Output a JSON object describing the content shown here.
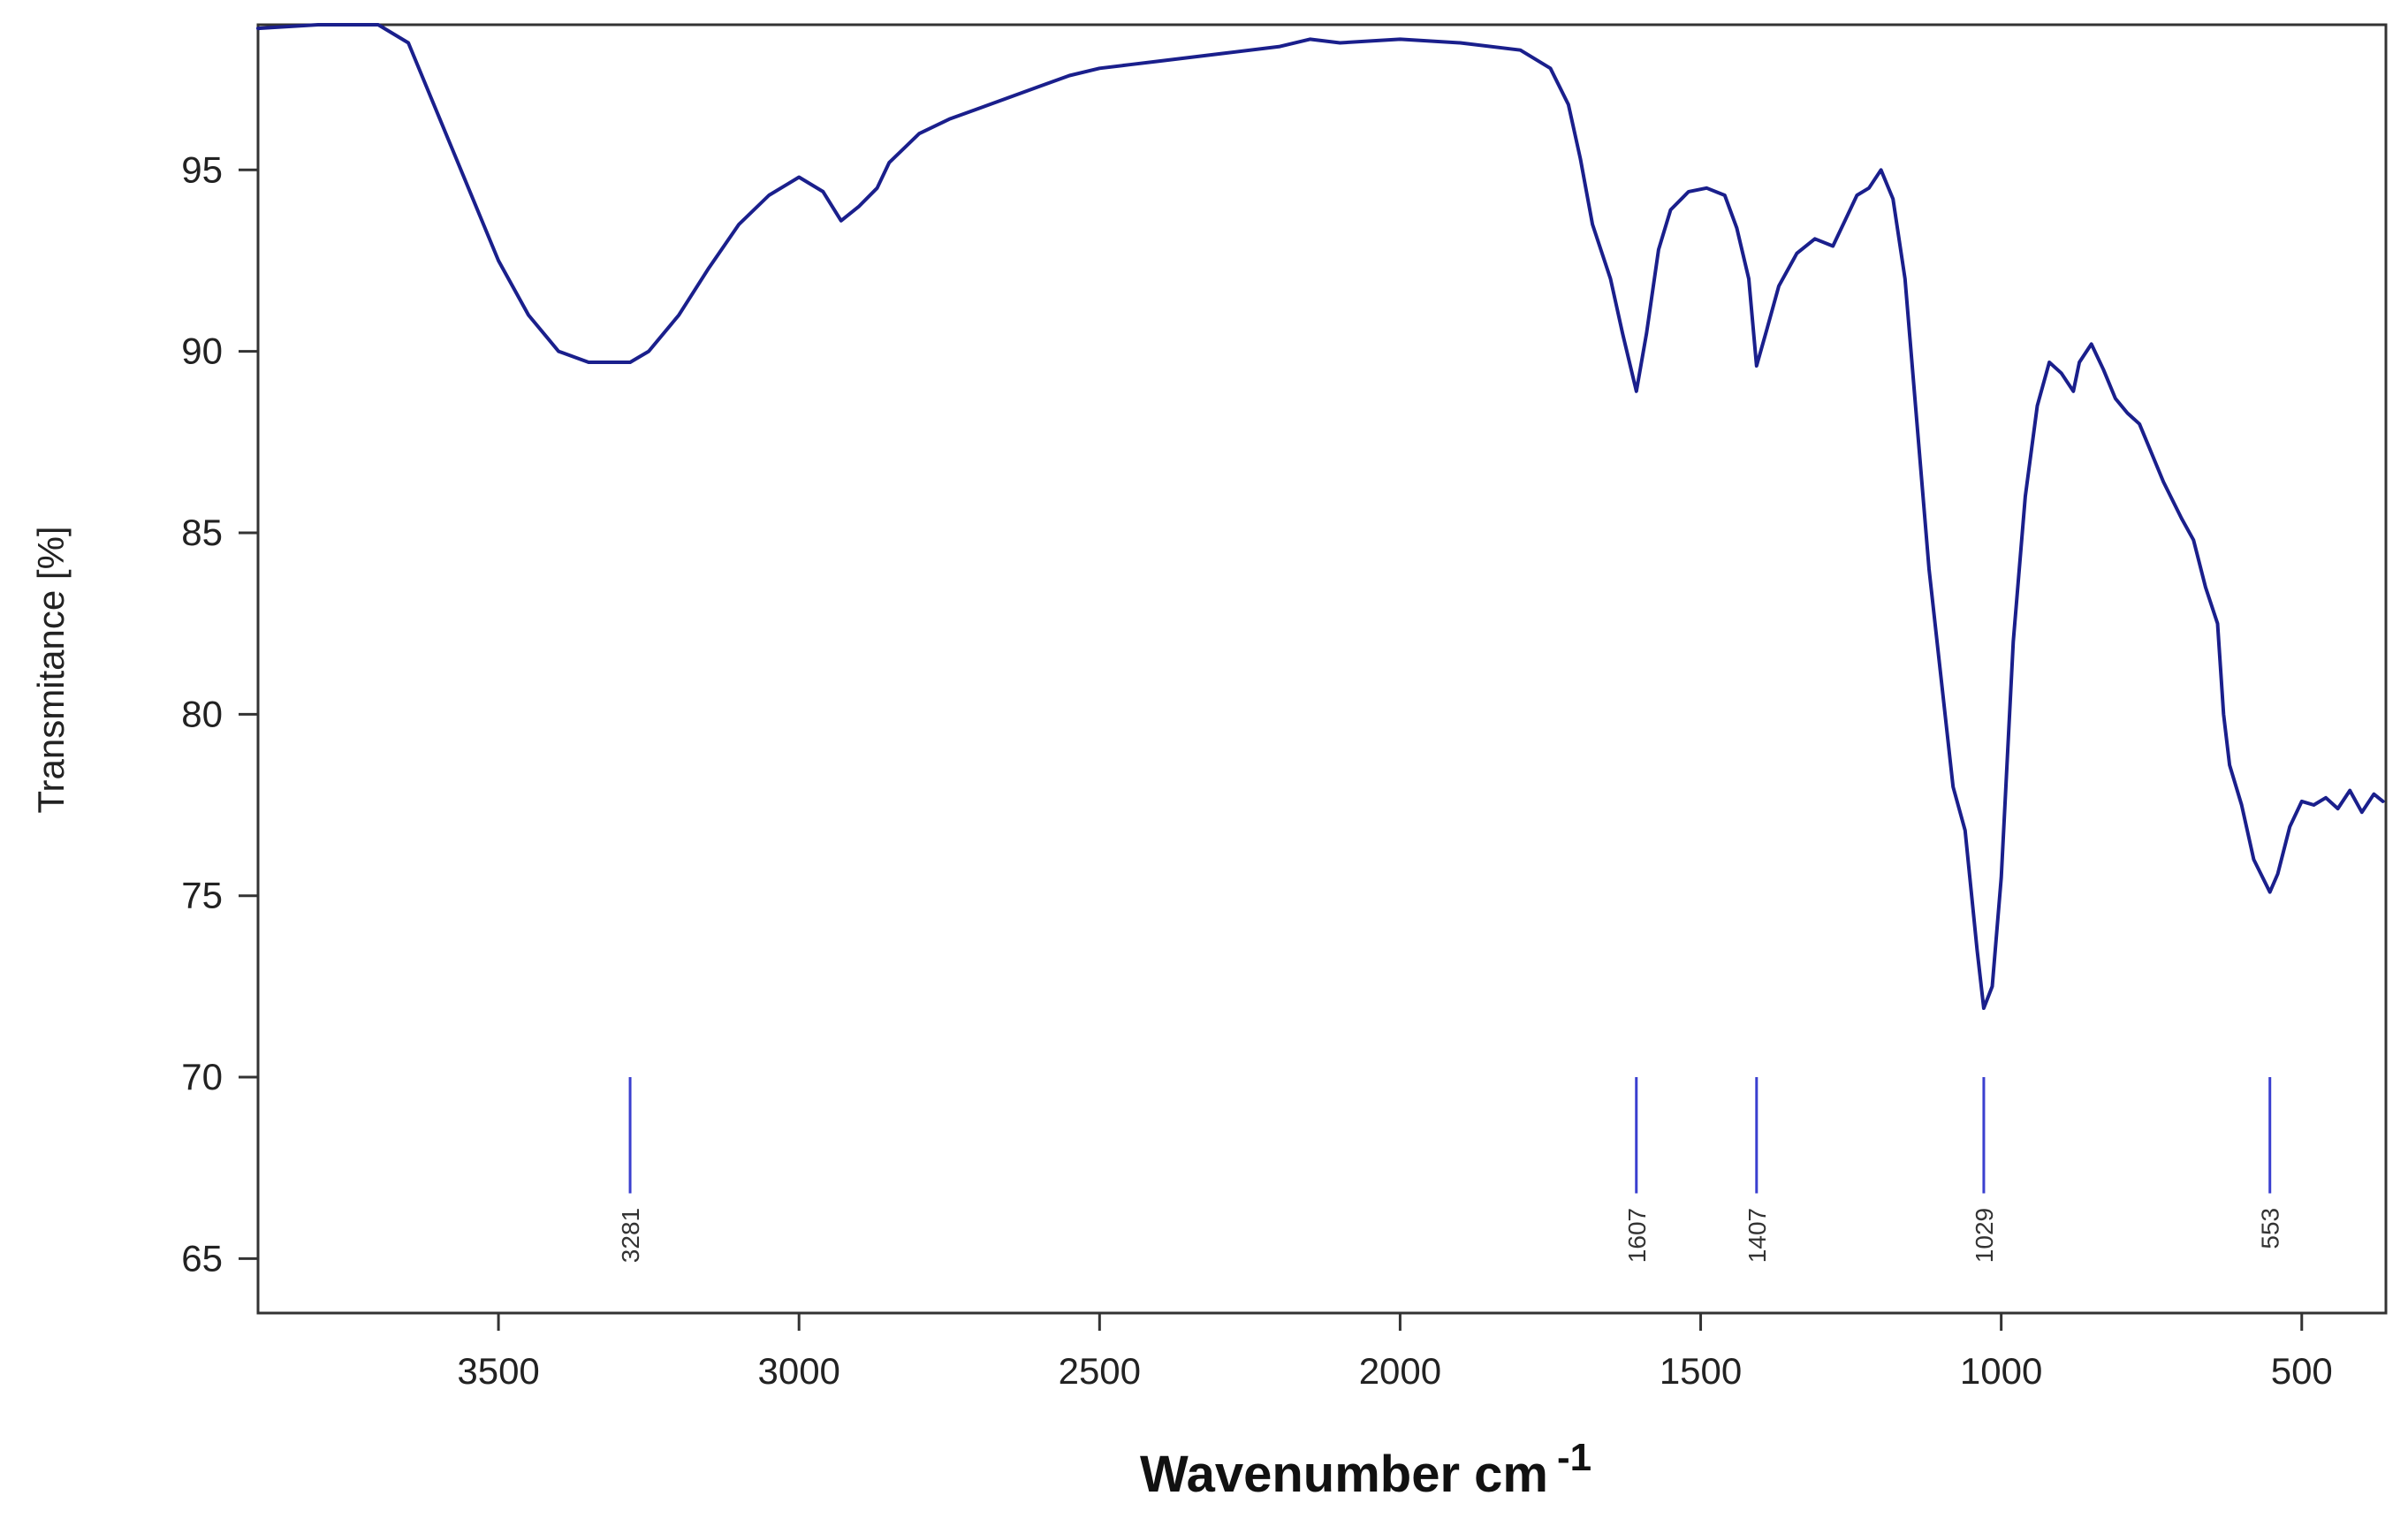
{
  "chart_data": {
    "type": "line",
    "title": "",
    "xlabel": "Wavenumber cm",
    "xlabel_superscript": "-1",
    "ylabel": "Transmitance [%]",
    "xlim": [
      3900,
      360
    ],
    "ylim": [
      63.5,
      99
    ],
    "x_ticks": [
      3500,
      3000,
      2500,
      2000,
      1500,
      1000,
      500
    ],
    "x_tick_labels": [
      "3500",
      "3000",
      "2500",
      "2000",
      "1500",
      "1000",
      "500"
    ],
    "y_ticks": [
      65,
      70,
      75,
      80,
      85,
      90,
      95
    ],
    "y_tick_labels": [
      "65",
      "70",
      "75",
      "80",
      "85",
      "90",
      "95"
    ],
    "grid": false,
    "line_color": "#1a1f8c",
    "peak_marker_color": "#3a3fcf",
    "series": [
      {
        "x": [
          3900,
          3800,
          3700,
          3650,
          3600,
          3550,
          3500,
          3450,
          3400,
          3350,
          3300,
          3281,
          3250,
          3200,
          3150,
          3100,
          3050,
          3000,
          2960,
          2930,
          2900,
          2870,
          2850,
          2800,
          2750,
          2700,
          2650,
          2600,
          2550,
          2500,
          2450,
          2400,
          2300,
          2200,
          2150,
          2100,
          2000,
          1900,
          1800,
          1750,
          1720,
          1700,
          1680,
          1650,
          1630,
          1607,
          1590,
          1570,
          1550,
          1520,
          1490,
          1460,
          1440,
          1420,
          1407,
          1390,
          1370,
          1340,
          1310,
          1280,
          1260,
          1240,
          1220,
          1200,
          1180,
          1160,
          1140,
          1120,
          1100,
          1080,
          1060,
          1040,
          1029,
          1015,
          1000,
          980,
          960,
          940,
          920,
          900,
          880,
          870,
          850,
          830,
          810,
          790,
          770,
          750,
          730,
          700,
          680,
          660,
          640,
          630,
          620,
          600,
          580,
          565,
          553,
          540,
          520,
          500,
          480,
          460,
          440,
          420,
          400,
          380,
          365
        ],
        "y": [
          98.9,
          99.0,
          99.0,
          98.5,
          96.5,
          94.5,
          92.5,
          91.0,
          90.0,
          89.7,
          89.7,
          89.7,
          90.0,
          91.0,
          92.3,
          93.5,
          94.3,
          94.8,
          94.4,
          93.6,
          94.0,
          94.5,
          95.2,
          96.0,
          96.4,
          96.7,
          97.0,
          97.3,
          97.6,
          97.8,
          97.9,
          98.0,
          98.2,
          98.4,
          98.6,
          98.5,
          98.6,
          98.5,
          98.3,
          97.8,
          96.8,
          95.3,
          93.5,
          92.0,
          90.5,
          88.9,
          90.5,
          92.8,
          93.9,
          94.4,
          94.5,
          94.3,
          93.4,
          92.0,
          89.6,
          90.6,
          91.8,
          92.7,
          93.1,
          92.9,
          93.6,
          94.3,
          94.5,
          95.0,
          94.2,
          92.0,
          88.0,
          84.0,
          81.0,
          78.0,
          76.8,
          73.5,
          71.9,
          72.5,
          75.5,
          82.0,
          86.0,
          88.5,
          89.7,
          89.4,
          88.9,
          89.7,
          90.2,
          89.5,
          88.7,
          88.3,
          88.0,
          87.2,
          86.4,
          85.4,
          84.8,
          83.5,
          82.5,
          80.0,
          78.6,
          77.5,
          76.0,
          75.5,
          75.1,
          75.6,
          76.9,
          77.6,
          77.5,
          77.7,
          77.4,
          77.9,
          77.3,
          77.8,
          77.6
        ]
      }
    ],
    "peaks": [
      {
        "x": 3281,
        "label": "3281"
      },
      {
        "x": 1607,
        "label": "1607"
      },
      {
        "x": 1407,
        "label": "1407"
      },
      {
        "x": 1029,
        "label": "1029"
      },
      {
        "x": 553,
        "label": "553"
      }
    ]
  }
}
